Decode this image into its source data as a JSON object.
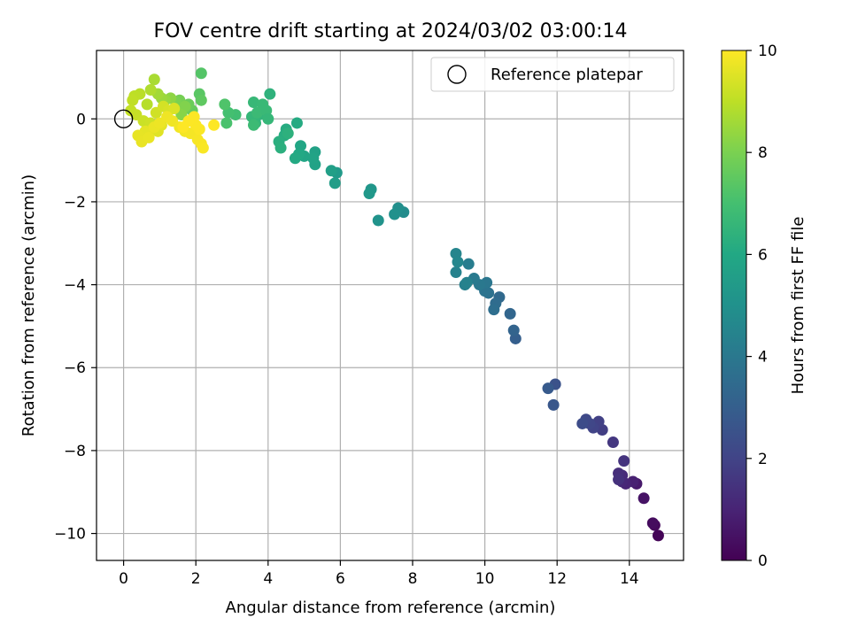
{
  "chart_data": {
    "type": "scatter",
    "title": "FOV centre drift starting at 2024/03/02 03:00:14",
    "xlabel": "Angular distance from reference (arcmin)",
    "ylabel": "Rotation from reference (arcmin)",
    "xlim": [
      -0.75,
      15.5
    ],
    "ylim": [
      -10.65,
      1.65
    ],
    "xticks": [
      0,
      2,
      4,
      6,
      8,
      10,
      12,
      14
    ],
    "yticks": [
      0,
      -2,
      -4,
      -6,
      -8,
      -10
    ],
    "tick_labels_x": [
      "0",
      "2",
      "4",
      "6",
      "8",
      "10",
      "12",
      "14"
    ],
    "tick_labels_y": [
      "0",
      "−2",
      "−4",
      "−6",
      "−8",
      "−10"
    ],
    "grid": true,
    "legend": {
      "placement": "top-right",
      "entries": [
        "Reference platepar"
      ]
    },
    "reference_point": {
      "x": 0,
      "y": 0,
      "label": "Reference platepar"
    },
    "colorbar": {
      "label": "Hours from first FF file",
      "min": 0,
      "max": 10,
      "ticks": [
        0,
        2,
        4,
        6,
        8,
        10
      ],
      "tick_labels": [
        "0",
        "2",
        "4",
        "6",
        "8",
        "10"
      ],
      "colormap": "viridis"
    },
    "series": [
      {
        "x": [
          14.8,
          14.7,
          14.65,
          14.4,
          14.2,
          14.1,
          13.9,
          13.8,
          13.8,
          13.7,
          13.7,
          13.85,
          13.55,
          13.25,
          13.15,
          13.0,
          12.9,
          12.8,
          12.7,
          11.95,
          11.9,
          11.75,
          10.85,
          10.8,
          10.7,
          10.4,
          10.3,
          10.25,
          10.1,
          10.0,
          10.05,
          9.85,
          9.7,
          9.55,
          9.45,
          9.2,
          9.2,
          9.25,
          9.5,
          7.75,
          7.6,
          7.5,
          7.05,
          6.85,
          6.8,
          5.9,
          5.85,
          5.75,
          5.3,
          5.3,
          5.25,
          5.0,
          4.9,
          4.85,
          4.75,
          4.8,
          4.5,
          4.45,
          4.3,
          4.35,
          4.55,
          4.05,
          3.75,
          3.65,
          3.55,
          3.6,
          3.85,
          3.7,
          3.6,
          3.95,
          4.0,
          3.1,
          2.9,
          2.85,
          2.8,
          2.15,
          2.1,
          2.15,
          1.9,
          1.8,
          1.7,
          1.55,
          1.45,
          1.7,
          1.6,
          1.3,
          1.15,
          1.05,
          0.95,
          0.85,
          0.75,
          0.65,
          0.45,
          0.3,
          0.25,
          0.2,
          0.35,
          0.55,
          0.75,
          0.9,
          1.1,
          1.25,
          1.4,
          0.8,
          0.95,
          1.05,
          0.6,
          0.4,
          0.5,
          0.7,
          0.85,
          1.0,
          1.2,
          1.35,
          1.55,
          1.7,
          1.85,
          2.05,
          2.15,
          2.2,
          2.1,
          2.0,
          1.95,
          1.8,
          1.65,
          2.5
        ],
        "y": [
          -10.05,
          -9.8,
          -9.75,
          -9.15,
          -8.8,
          -8.75,
          -8.8,
          -8.75,
          -8.6,
          -8.55,
          -8.7,
          -8.25,
          -7.8,
          -7.5,
          -7.3,
          -7.45,
          -7.35,
          -7.25,
          -7.35,
          -6.4,
          -6.9,
          -6.5,
          -5.3,
          -5.1,
          -4.7,
          -4.3,
          -4.45,
          -4.6,
          -4.2,
          -4.15,
          -3.95,
          -4.0,
          -3.85,
          -3.5,
          -4.0,
          -3.7,
          -3.25,
          -3.45,
          -3.95,
          -2.25,
          -2.15,
          -2.3,
          -2.45,
          -1.7,
          -1.8,
          -1.3,
          -1.55,
          -1.25,
          -0.8,
          -1.1,
          -0.95,
          -0.9,
          -0.65,
          -0.85,
          -0.95,
          -0.1,
          -0.25,
          -0.4,
          -0.55,
          -0.7,
          -0.35,
          0.6,
          0.1,
          -0.1,
          0.05,
          0.4,
          0.35,
          0.15,
          -0.15,
          0.2,
          0.0,
          0.1,
          0.15,
          -0.1,
          0.35,
          1.1,
          0.6,
          0.45,
          0.2,
          0.35,
          0.25,
          0.45,
          0.4,
          0.3,
          0.1,
          0.5,
          0.45,
          0.5,
          0.6,
          0.95,
          0.7,
          0.35,
          0.6,
          0.55,
          0.45,
          0.2,
          0.1,
          -0.05,
          -0.1,
          0.15,
          0.3,
          0.2,
          0.25,
          -0.25,
          -0.3,
          -0.15,
          -0.3,
          -0.4,
          -0.55,
          -0.45,
          -0.2,
          -0.1,
          0.05,
          -0.05,
          -0.2,
          -0.3,
          -0.35,
          -0.5,
          -0.6,
          -0.7,
          -0.25,
          -0.15,
          0.05,
          -0.05,
          -0.2,
          -0.15
        ],
        "hours": [
          0.1,
          0.2,
          0.3,
          0.5,
          0.7,
          0.9,
          1.0,
          1.1,
          1.2,
          1.3,
          1.4,
          1.5,
          1.6,
          1.8,
          1.9,
          2.0,
          2.1,
          2.2,
          2.3,
          2.5,
          2.7,
          2.8,
          3.0,
          3.2,
          3.3,
          3.4,
          3.5,
          3.6,
          3.7,
          3.8,
          3.9,
          4.0,
          4.1,
          4.2,
          4.3,
          4.4,
          4.5,
          4.6,
          4.4,
          4.8,
          4.9,
          5.0,
          5.1,
          5.2,
          5.3,
          5.4,
          5.5,
          5.6,
          5.7,
          5.75,
          5.8,
          5.85,
          5.9,
          6.0,
          6.05,
          6.1,
          6.15,
          6.2,
          6.25,
          6.3,
          6.35,
          6.4,
          6.5,
          6.55,
          6.6,
          6.65,
          6.7,
          6.75,
          6.8,
          6.7,
          6.6,
          6.9,
          7.0,
          7.1,
          7.2,
          7.3,
          7.4,
          7.5,
          7.6,
          7.7,
          7.8,
          7.9,
          8.0,
          8.1,
          8.2,
          8.3,
          8.4,
          8.5,
          8.6,
          8.7,
          8.8,
          8.9,
          8.95,
          9.0,
          9.05,
          9.1,
          9.15,
          9.2,
          9.25,
          9.3,
          9.35,
          9.4,
          9.45,
          9.5,
          9.55,
          9.6,
          9.62,
          9.65,
          9.68,
          9.7,
          9.72,
          9.75,
          9.78,
          9.8,
          9.82,
          9.85,
          9.87,
          9.9,
          9.92,
          9.94,
          9.96,
          9.97,
          9.98,
          9.99,
          9.995,
          10.0
        ]
      }
    ]
  }
}
